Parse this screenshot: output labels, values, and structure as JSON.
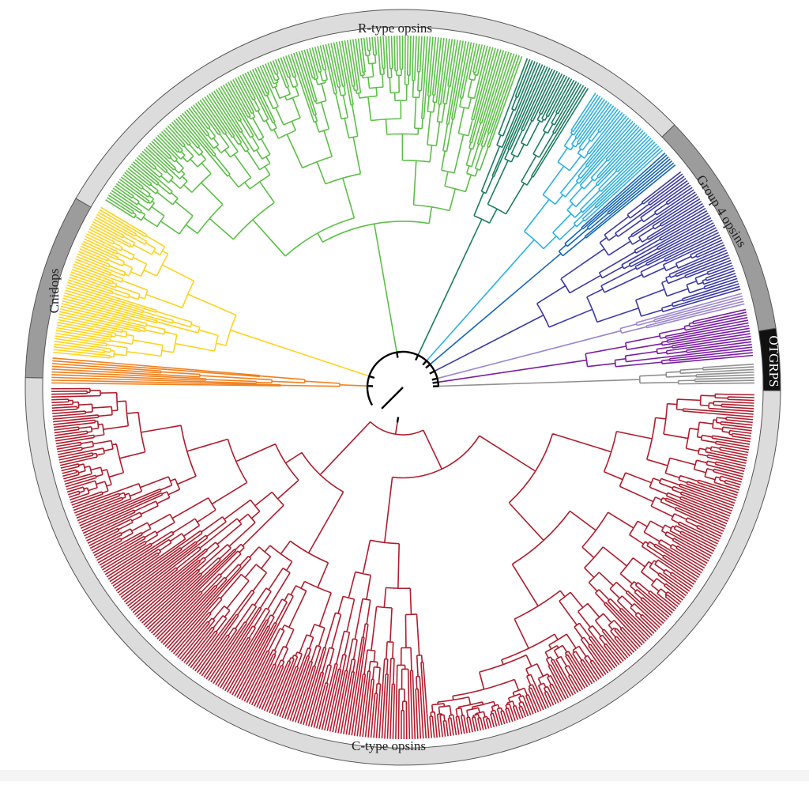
{
  "clades": [
    {
      "label": "R-type opsins"
    },
    {
      "label": "Group 4 opsins"
    },
    {
      "label": "OTGRPS"
    },
    {
      "label": "C-type opsins"
    },
    {
      "label": "Cnidops"
    }
  ]
}
